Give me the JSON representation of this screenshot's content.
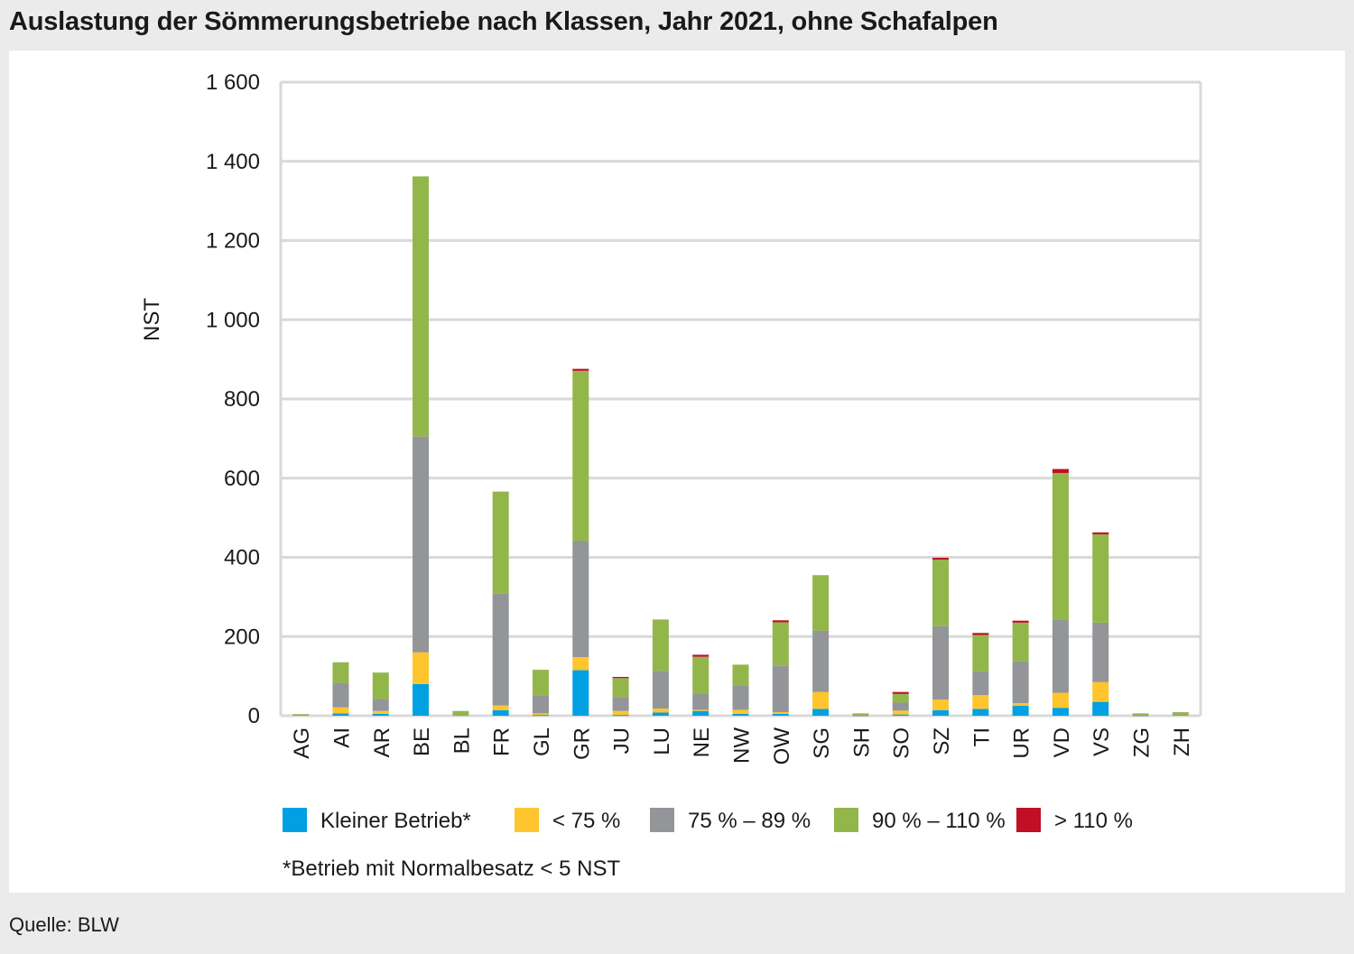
{
  "title": "Auslastung der Sömmerungsbetriebe nach Klassen, Jahr 2021, ohne Schafalpen",
  "source": "Quelle: BLW",
  "chart_data": {
    "type": "bar",
    "stacked": true,
    "title": "",
    "xlabel": "",
    "ylabel": "NST",
    "ylim": [
      0,
      1600
    ],
    "yticks": [
      0,
      200,
      400,
      600,
      800,
      1000,
      1200,
      1400,
      1600
    ],
    "ytick_labels": [
      "0",
      "200",
      "400",
      "600",
      "800",
      "1 000",
      "1 200",
      "1 400",
      "1 600"
    ],
    "grid": true,
    "legend_position": "bottom",
    "categories": [
      "AG",
      "AI",
      "AR",
      "BE",
      "BL",
      "FR",
      "GL",
      "GR",
      "JU",
      "LU",
      "NE",
      "NW",
      "OW",
      "SG",
      "SH",
      "SO",
      "SZ",
      "TI",
      "UR",
      "VD",
      "VS",
      "ZG",
      "ZH"
    ],
    "series": [
      {
        "name": "Kleiner Betrieb*",
        "color": "#00a0e3",
        "values": [
          0,
          6,
          5,
          80,
          0,
          14,
          2,
          115,
          2,
          8,
          12,
          5,
          5,
          17,
          0,
          3,
          14,
          17,
          25,
          20,
          35,
          0,
          0
        ]
      },
      {
        "name": "< 75 %",
        "color": "#fec52e",
        "values": [
          0,
          15,
          7,
          80,
          0,
          12,
          4,
          33,
          10,
          10,
          3,
          10,
          4,
          43,
          0,
          10,
          27,
          35,
          7,
          38,
          50,
          0,
          0
        ]
      },
      {
        "name": "75 % – 89 %",
        "color": "#939598",
        "values": [
          3,
          62,
          30,
          545,
          2,
          282,
          45,
          293,
          35,
          95,
          41,
          62,
          117,
          155,
          1,
          20,
          185,
          60,
          105,
          185,
          150,
          1,
          3
        ]
      },
      {
        "name": "90 % – 110 %",
        "color": "#93b64b",
        "values": [
          1,
          52,
          67,
          657,
          10,
          258,
          65,
          430,
          48,
          130,
          93,
          52,
          110,
          140,
          5,
          22,
          168,
          92,
          98,
          370,
          223,
          5,
          6
        ]
      },
      {
        "name": "> 110 %",
        "color": "#c10f25",
        "values": [
          0,
          0,
          0,
          0,
          0,
          0,
          0,
          5,
          3,
          0,
          5,
          0,
          5,
          0,
          0,
          5,
          5,
          5,
          5,
          10,
          5,
          0,
          0
        ]
      }
    ],
    "footnote": "*Betrieb mit Normalbesatz < 5 NST"
  }
}
